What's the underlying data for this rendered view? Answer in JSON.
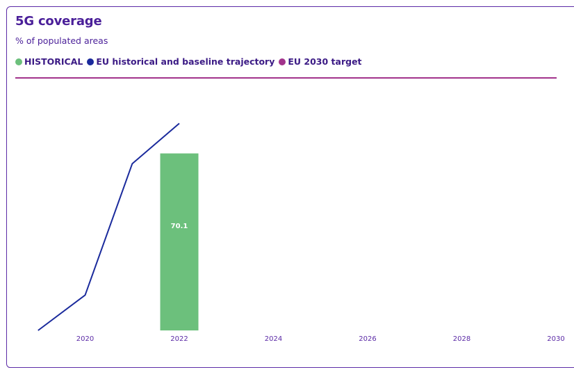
{
  "header": {
    "title": "5G coverage",
    "subtitle": "% of populated areas"
  },
  "legend": [
    {
      "label": "HISTORICAL",
      "color": "#6cc07c"
    },
    {
      "label": "EU historical and baseline trajectory",
      "color": "#1a2a9c"
    },
    {
      "label": "EU 2030 target",
      "color": "#a2338c"
    }
  ],
  "chart_data": {
    "type": "bar",
    "xlabel": "",
    "ylabel": "",
    "x_ticks": [
      "2020",
      "2022",
      "2024",
      "2026",
      "2028",
      "2030"
    ],
    "xlim": [
      2018.9,
      2030.0
    ],
    "ylim": [
      0,
      100
    ],
    "series": [
      {
        "name": "HISTORICAL",
        "type": "bar",
        "color": "#6cc07c",
        "x": [
          2022
        ],
        "values": [
          70.1
        ],
        "data_labels": [
          "70.1"
        ]
      },
      {
        "name": "EU historical and baseline trajectory",
        "type": "line",
        "color": "#1a2a9c",
        "x": [
          2019,
          2020,
          2021,
          2022
        ],
        "values": [
          0,
          14,
          66,
          82
        ]
      },
      {
        "name": "EU 2030 target",
        "type": "hline",
        "color": "#a2338c",
        "values": [
          100
        ]
      }
    ]
  }
}
